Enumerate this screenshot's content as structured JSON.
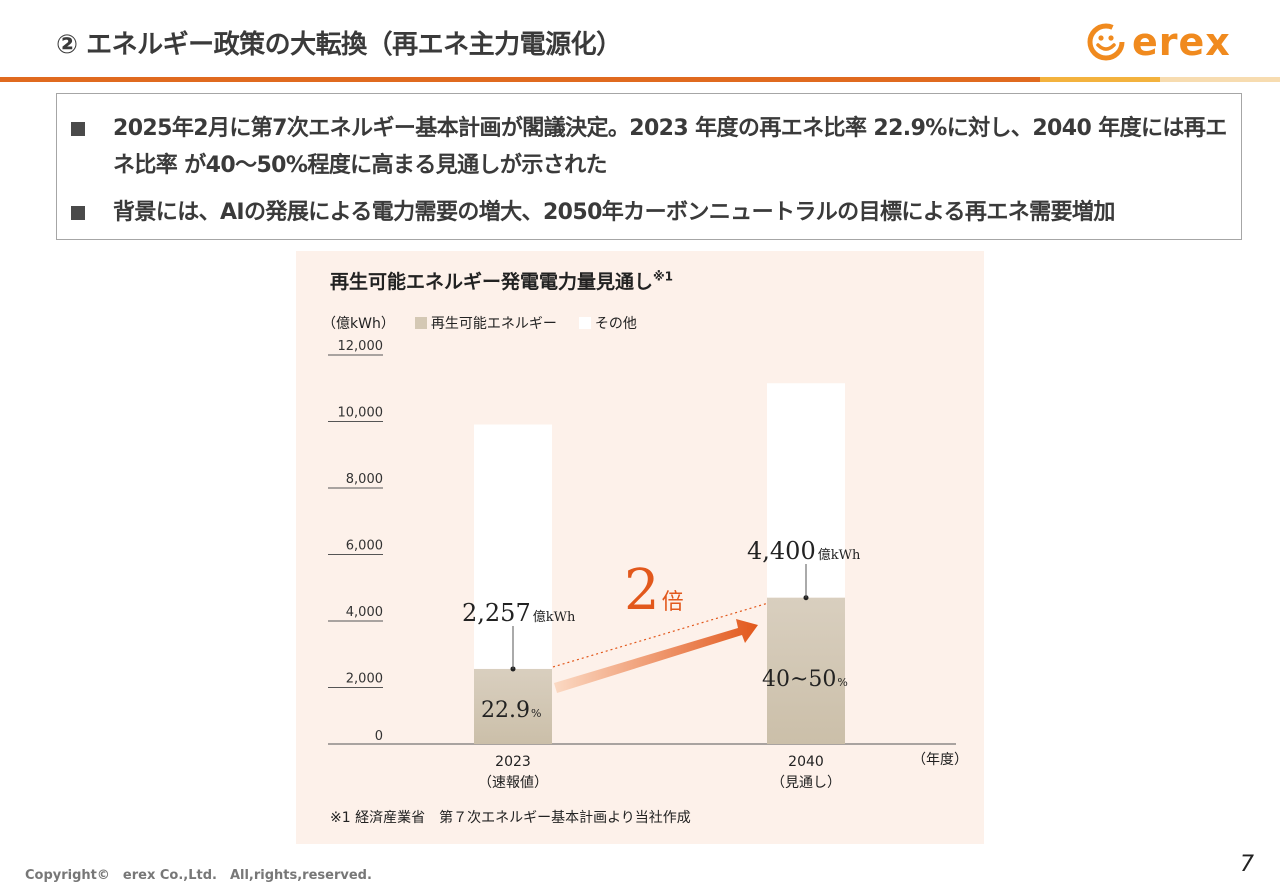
{
  "header": {
    "title": "② エネルギー政策の大転換（再エネ主力電源化）",
    "logo_text": "erex"
  },
  "bullets": [
    "2025年2月に第7次エネルギー基本計画が閣議決定。2023 年度の再エネ比率 22.9%に対し、2040 年度には再エネ比率 が40～50%程度に高まる見通しが示された",
    "背景には、AIの発展による電力需要の増大、2050年カーボンニュートラルの目標による再エネ需要増加"
  ],
  "chart_data": {
    "type": "bar",
    "title": "再生可能エネルギー発電電力量見通し",
    "title_sup": "※1",
    "unit_label": "（億kWh）",
    "legend": [
      "再生可能エネルギー",
      "その他"
    ],
    "categories": [
      "2023",
      "2040"
    ],
    "category_sublabels": [
      "（速報値）",
      "（見通し）"
    ],
    "xlabel": "（年度）",
    "yticks": [
      "12,000",
      "10,000",
      "8,000",
      "6,000",
      "4,000",
      "2,000",
      "0"
    ],
    "ylim": [
      0,
      12000
    ],
    "series": [
      {
        "name": "再生可能エネルギー",
        "values": [
          2257,
          4400
        ]
      },
      {
        "name": "その他",
        "values": [
          7350,
          6450
        ]
      }
    ],
    "value_labels": [
      {
        "num": "2,257",
        "unit": "億kWh"
      },
      {
        "num": "4,400",
        "unit": "億kWh"
      }
    ],
    "share_labels": [
      {
        "num": "22.9",
        "unit": "%"
      },
      {
        "num": "40~50",
        "unit": "%"
      }
    ],
    "annotation": {
      "num": "2",
      "unit": "倍"
    },
    "colors": {
      "renewable": "#d4c8b4",
      "other": "#ffffff",
      "accent": "#e2581c"
    }
  },
  "footnote": "※1 経済産業省　第７次エネルギー基本計画より当社作成",
  "footer": {
    "copyright": "Copyright©　erex Co.,Ltd.　All,rights,reserved.",
    "page_number": "7"
  }
}
